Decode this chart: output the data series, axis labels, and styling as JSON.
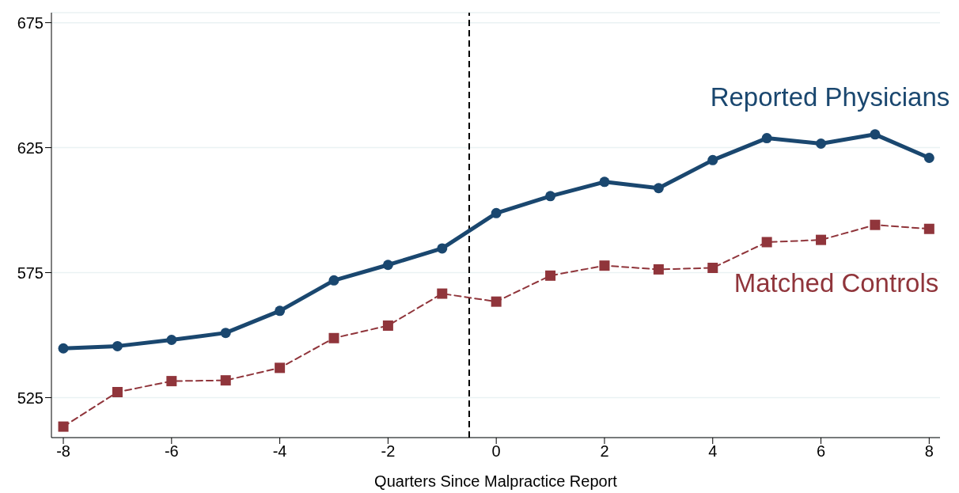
{
  "chart_data": {
    "type": "line",
    "xlabel": "Quarters Since Malpractice Report",
    "x": [
      -8,
      -7,
      -6,
      -5,
      -4,
      -3,
      -2,
      -1,
      0,
      1,
      2,
      3,
      4,
      5,
      6,
      7,
      8
    ],
    "series": [
      {
        "name": "Reported Physicians",
        "color": "#1a476f",
        "marker": "circle",
        "line_style": "solid",
        "values": [
          544.7,
          545.6,
          548.1,
          550.9,
          559.7,
          571.9,
          578.1,
          584.7,
          598.8,
          605.6,
          611.3,
          608.8,
          620,
          628.8,
          626.6,
          630.3,
          620.9
        ]
      },
      {
        "name": "Matched Controls",
        "color": "#90353b",
        "marker": "square",
        "line_style": "dashed",
        "values": [
          513.4,
          527.2,
          531.6,
          531.9,
          536.9,
          548.8,
          553.8,
          566.6,
          563.4,
          573.8,
          577.8,
          576.3,
          576.9,
          587.2,
          588.1,
          594.1,
          592.5
        ]
      }
    ],
    "xlim": [
      -8.22,
      8.2
    ],
    "xticks": [
      -8,
      -6,
      -4,
      -2,
      0,
      2,
      4,
      6,
      8
    ],
    "ylim": [
      509,
      679
    ],
    "yticks": [
      525,
      575,
      625,
      675
    ],
    "grid": "y",
    "legend": false,
    "ref_lines": [
      {
        "axis": "x",
        "value": -0.5,
        "color": "#000000",
        "line_style": "dashed"
      }
    ]
  }
}
